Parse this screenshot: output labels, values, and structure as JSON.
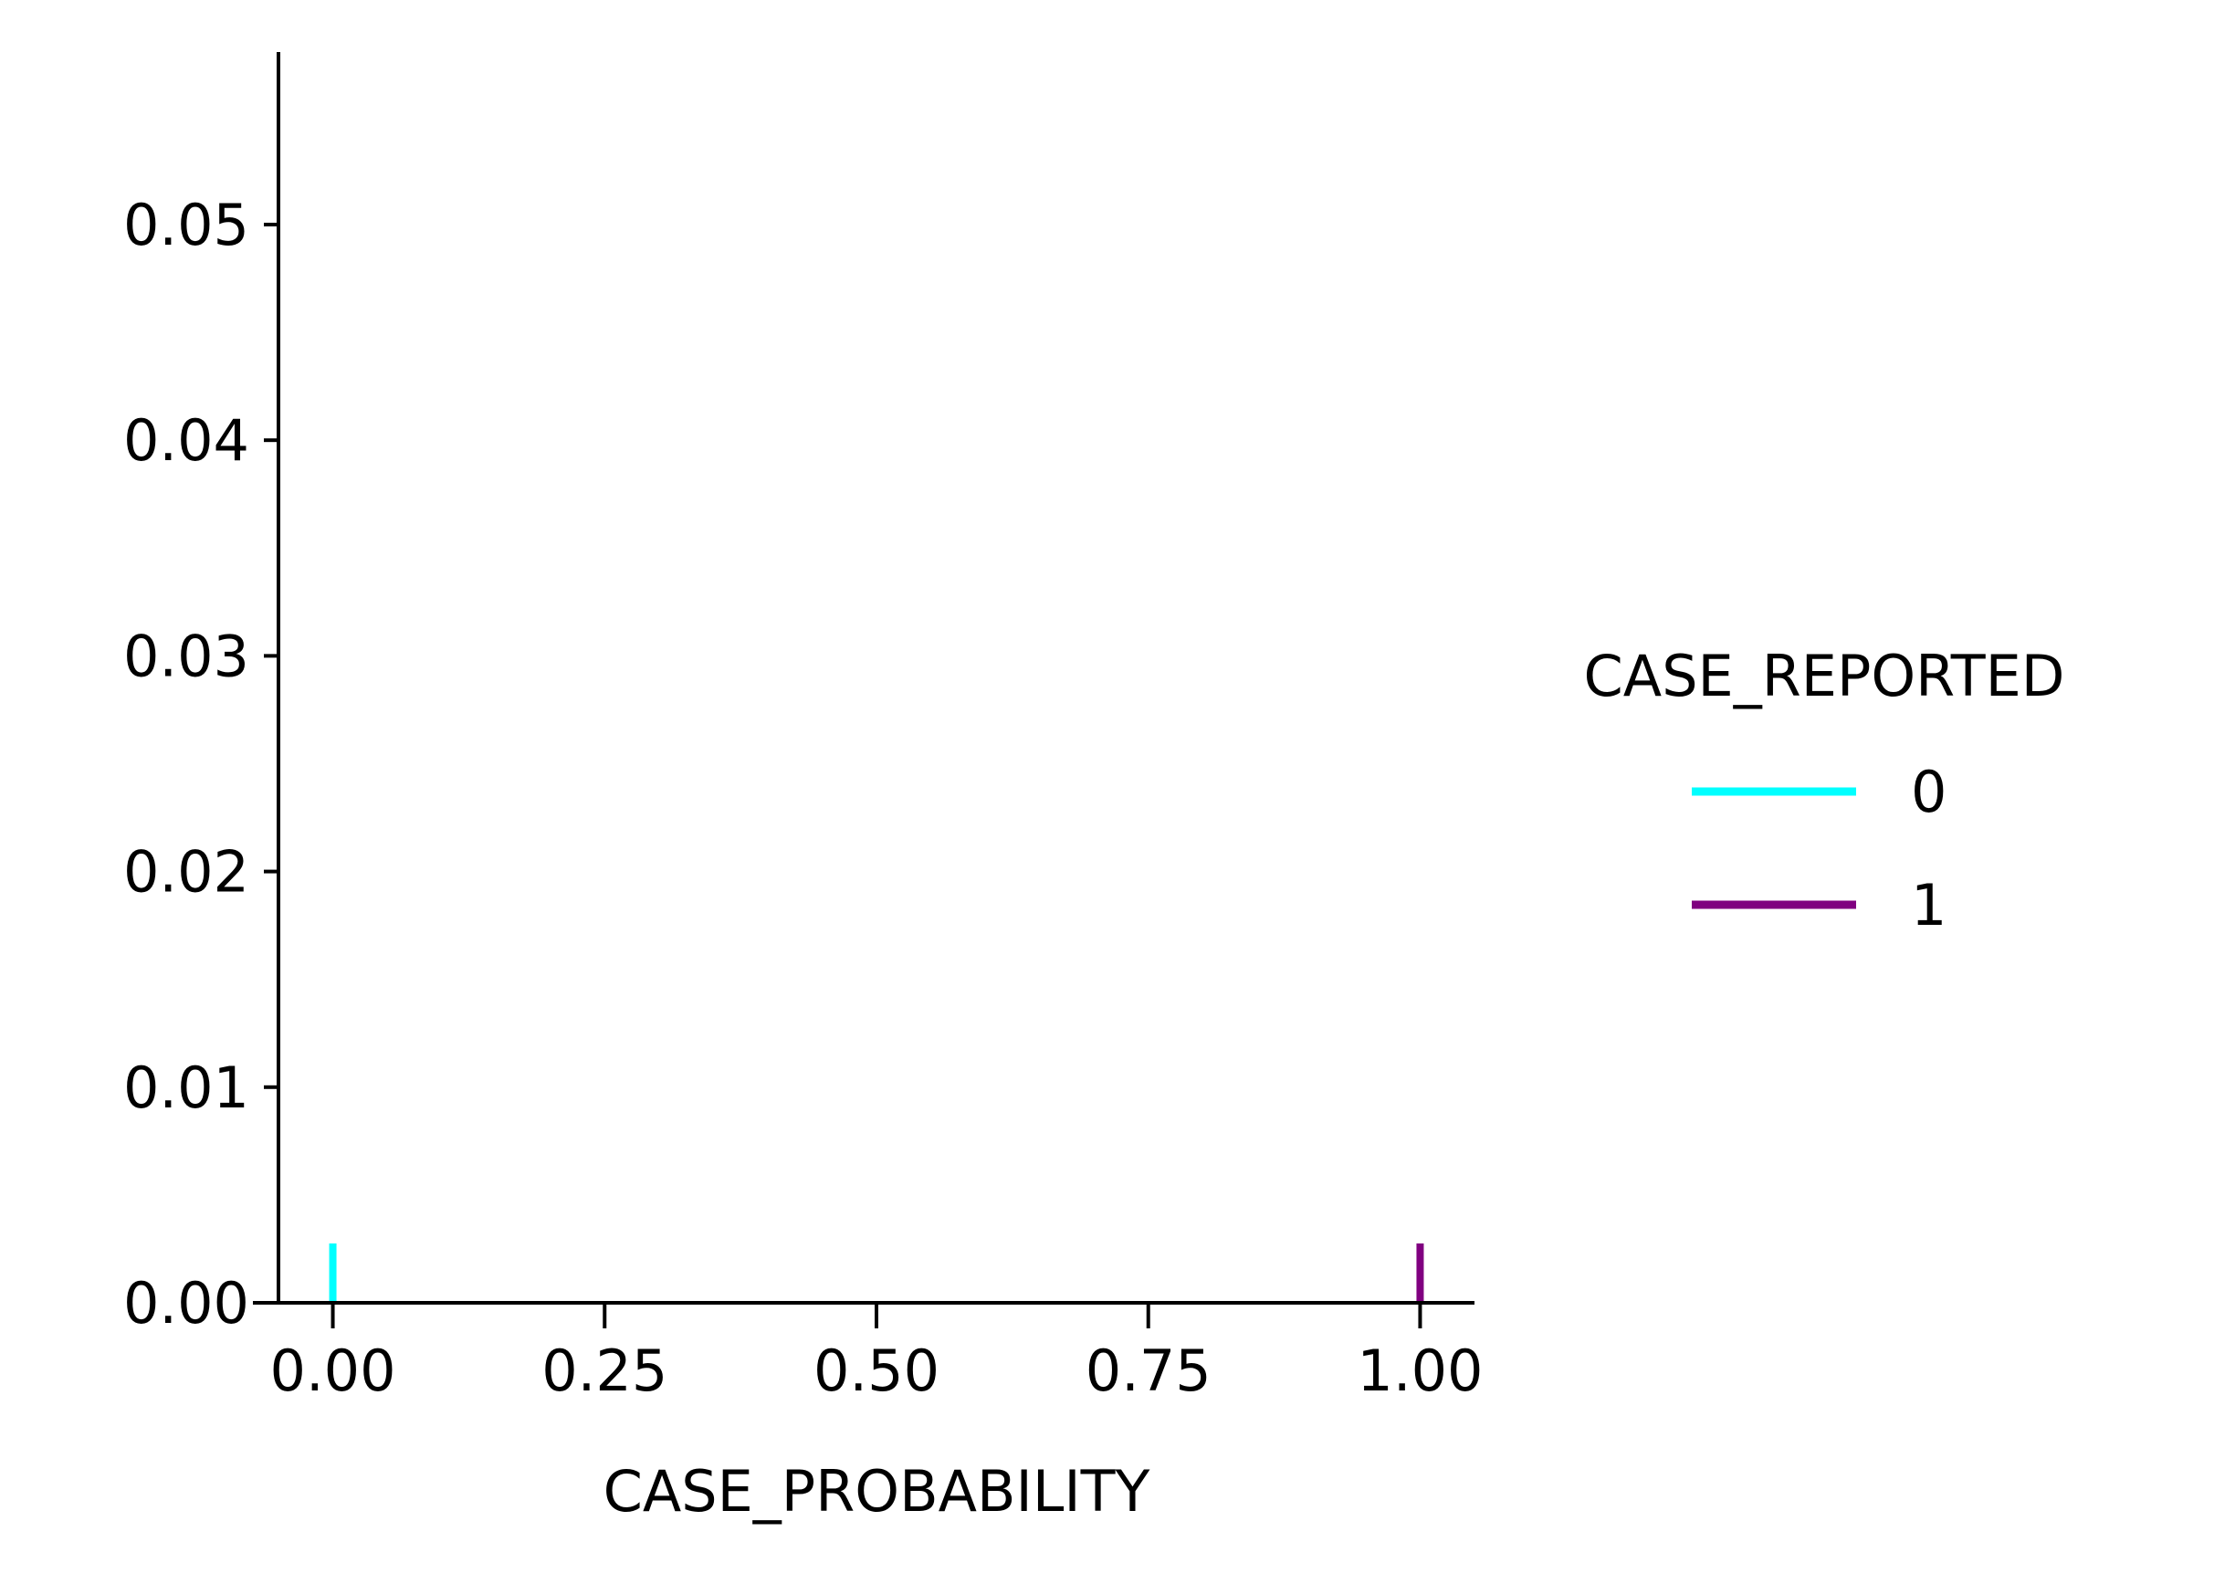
{
  "chart_data": {
    "type": "kde",
    "xlabel": "CASE_PROBABILITY",
    "ylabel": "",
    "xlim": [
      -0.05,
      1.05
    ],
    "ylim": [
      0,
      0.058
    ],
    "x_ticks": [
      0.0,
      0.25,
      0.5,
      0.75,
      1.0
    ],
    "x_tick_labels": [
      "0.00",
      "0.25",
      "0.50",
      "0.75",
      "1.00"
    ],
    "y_ticks": [
      0.0,
      0.01,
      0.02,
      0.03,
      0.04,
      0.05
    ],
    "y_tick_labels": [
      "0.00",
      "0.01",
      "0.02",
      "0.03",
      "0.04",
      "0.05"
    ],
    "legend": {
      "title": "CASE_REPORTED",
      "placement": "center-right",
      "entries": [
        {
          "label": "0",
          "color": "#00ffff"
        },
        {
          "label": "1",
          "color": "#800080"
        }
      ]
    },
    "series": [
      {
        "name": "0",
        "color": "#00ffff",
        "rug": [
          0.0
        ],
        "density": []
      },
      {
        "name": "1",
        "color": "#800080",
        "rug": [
          1.0
        ],
        "density": []
      }
    ],
    "grid": false
  }
}
